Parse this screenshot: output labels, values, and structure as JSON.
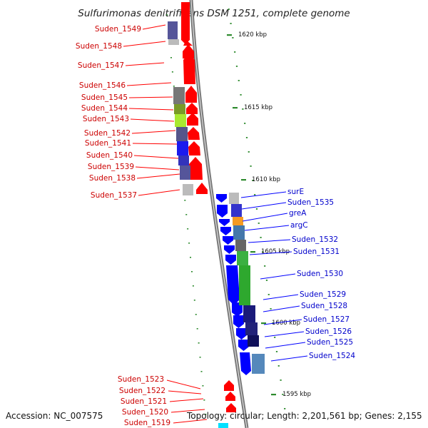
{
  "title": "Sulfurimonas denitrificans DSM 1251, complete genome",
  "accession": "Accession: NC_007575",
  "topology_line": "Topology: circular; Length: 2,201,561 bp; Genes: 2,155",
  "kbp_labels": [
    "1620 kbp",
    "1615 kbp",
    "1610 kbp",
    "1605 kbp",
    "1600 kbp",
    "1595 kbp"
  ],
  "reverse_genes": [
    "Suden_1549",
    "Suden_1548",
    "Suden_1547",
    "Suden_1546",
    "Suden_1545",
    "Suden_1544",
    "Suden_1543",
    "Suden_1542",
    "Suden_1541",
    "Suden_1540",
    "Suden_1539",
    "Suden_1538",
    "Suden_1537"
  ],
  "forward_genes": [
    "surE",
    "Suden_1535",
    "greA",
    "argC",
    "Suden_1532",
    "Suden_1531",
    "Suden_1530",
    "Suden_1529",
    "Suden_1528",
    "Suden_1527",
    "Suden_1526",
    "Suden_1525",
    "Suden_1524"
  ],
  "bottom_genes": [
    "Suden_1523",
    "Suden_1522",
    "Suden_1521",
    "Suden_1520",
    "Suden_1519"
  ],
  "colors": {
    "reverse_strand": "#ff0000",
    "forward_strand": "#0000ff",
    "backbone": "#888888",
    "tick": "#2e8b2e"
  }
}
